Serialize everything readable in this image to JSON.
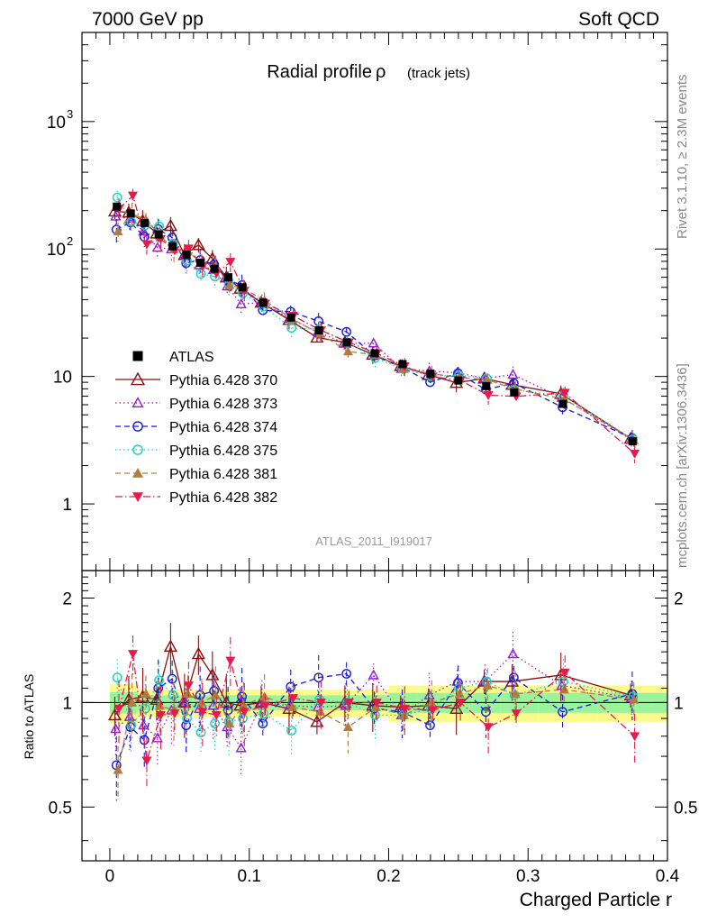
{
  "header": {
    "left": "7000 GeV pp",
    "right": "Soft QCD"
  },
  "side_text": {
    "top": "Rivet 3.1.10, ≥ 2.3M events",
    "bottom": "mcplots.cern.ch [arXiv:1306.3436]"
  },
  "chart_data": {
    "type": "scatter",
    "title": "Radial profile",
    "title_symbol": "ρ",
    "title_suffix": "(track jets)",
    "analysis_label": "ATLAS_2011_I919017",
    "xlabel": "Charged Particle r",
    "ylabel_ratio": "Ratio to ATLAS",
    "xlim": [
      -0.02,
      0.4
    ],
    "ylim_main": [
      0.3,
      5000
    ],
    "ylim_ratio": [
      0.35,
      2.4
    ],
    "yscale": "log",
    "x_tick_labels": [
      "0",
      "0.1",
      "0.2",
      "0.3",
      "0.4"
    ],
    "y_tick_labels_main": [
      {
        "mant": "1",
        "exp": ""
      },
      {
        "mant": "10",
        "exp": ""
      },
      {
        "mant": "10",
        "exp": "2"
      },
      {
        "mant": "10",
        "exp": "3"
      }
    ],
    "y_tick_labels_ratio": [
      "0.5",
      "1",
      "2"
    ],
    "legend_position": "middle-left",
    "x": [
      0.005,
      0.015,
      0.025,
      0.035,
      0.045,
      0.055,
      0.065,
      0.075,
      0.085,
      0.095,
      0.11,
      0.13,
      0.15,
      0.17,
      0.19,
      0.21,
      0.23,
      0.25,
      0.27,
      0.29,
      0.325,
      0.375
    ],
    "reference": {
      "name": "ATLAS",
      "values": [
        215,
        190,
        160,
        130,
        105,
        90,
        78,
        70,
        60,
        50,
        38,
        29,
        23,
        18.5,
        15.2,
        12.5,
        10.5,
        9.3,
        8.4,
        7.5,
        6.1,
        3.1
      ]
    },
    "series": [
      {
        "name": "Pythia 6.428 370",
        "color": "#8b0d0d",
        "marker": "triangle-open",
        "dash": "",
        "ratio": [
          0.92,
          1.02,
          1.04,
          1.02,
          1.45,
          1.0,
          1.38,
          1.2,
          1.0,
          0.98,
          1.0,
          0.96,
          0.88,
          1.0,
          0.98,
          0.97,
          0.98,
          0.96,
          1.15,
          1.15,
          1.2,
          1.05
        ]
      },
      {
        "name": "Pythia 6.428 373",
        "color": "#9b1ad0",
        "marker": "triangle-open-small",
        "dash": "1.5,3",
        "ratio": [
          0.84,
          0.91,
          0.86,
          0.79,
          0.95,
          1.0,
          0.96,
          0.98,
          0.85,
          0.74,
          1.0,
          0.98,
          0.97,
          0.98,
          1.2,
          0.92,
          1.05,
          1.15,
          1.15,
          1.38,
          1.12,
          1.03
        ]
      },
      {
        "name": "Pythia 6.428 374",
        "color": "#1a1ad8",
        "marker": "circle-open",
        "dash": "6,4",
        "ratio": [
          0.66,
          0.85,
          0.78,
          1.1,
          1.17,
          0.86,
          1.05,
          1.08,
          0.95,
          1.04,
          0.87,
          1.11,
          1.18,
          1.21,
          0.96,
          0.94,
          0.86,
          1.14,
          0.94,
          1.18,
          0.94,
          1.06
        ]
      },
      {
        "name": "Pythia 6.428 375",
        "color": "#18d0c0",
        "marker": "circle-open",
        "dash": "1.5,3",
        "ratio": [
          1.18,
          0.86,
          0.96,
          1.16,
          1.05,
          0.9,
          0.82,
          0.87,
          0.88,
          0.9,
          0.93,
          0.83,
          1.02,
          1.0,
          0.92,
          0.92,
          0.96,
          1.1,
          1.15,
          1.05,
          1.15,
          1.04
        ]
      },
      {
        "name": "Pythia 6.428 381",
        "color": "#b07a40",
        "marker": "triangle-filled",
        "dash": "6,4",
        "ratio": [
          0.64,
          1.0,
          1.06,
          0.98,
          0.95,
          1.06,
          1.0,
          1.05,
          0.87,
          0.98,
          1.04,
          0.97,
          0.94,
          0.85,
          0.97,
          0.92,
          1.0,
          1.06,
          1.12,
          1.06,
          1.09,
          1.02
        ]
      },
      {
        "name": "Pythia 6.428 382",
        "color": "#e81a4a",
        "marker": "triangle-down-filled",
        "dash": "8,3,1.5,3",
        "ratio": [
          0.96,
          1.38,
          0.68,
          0.92,
          0.93,
          1.12,
          0.94,
          0.92,
          1.32,
          0.94,
          0.98,
          1.03,
          1.0,
          1.0,
          1.0,
          0.96,
          0.95,
          1.0,
          0.85,
          0.93,
          1.22,
          0.8
        ]
      }
    ]
  }
}
